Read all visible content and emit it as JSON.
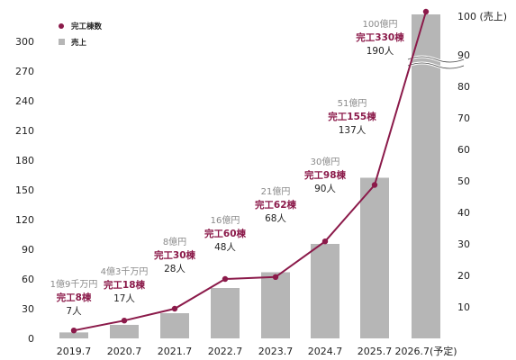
{
  "chart_data": {
    "type": "bar+line",
    "categories": [
      "2019.7",
      "2020.7",
      "2021.7",
      "2022.7",
      "2023.7",
      "2024.7",
      "2025.7",
      "2026.7(予定)"
    ],
    "legend": {
      "position": "top-left",
      "line_name": "完工棟数",
      "bar_name": "売上"
    },
    "colors": {
      "line": "#8b1a4a",
      "bar": "#b6b6b6",
      "units_label": "#8b1a4a",
      "revenue_label": "#8a8a8a"
    },
    "left_axis": {
      "ticks": [
        0,
        30,
        60,
        90,
        120,
        150,
        180,
        210,
        240,
        270,
        300
      ],
      "ylim": [
        0,
        310
      ]
    },
    "right_axis": {
      "ticks": [
        10,
        20,
        30,
        40,
        50,
        60,
        70,
        80,
        90
      ],
      "top_label": "100 (売上)",
      "ylim_lower": [
        0,
        90
      ],
      "axis_break": true
    },
    "series": [
      {
        "name": "完工棟数",
        "type": "line",
        "axis": "left",
        "values": [
          8,
          18,
          30,
          60,
          62,
          98,
          155,
          330
        ]
      },
      {
        "name": "売上",
        "type": "bar",
        "axis": "right",
        "unit": "億円",
        "values": [
          1.9,
          4.3,
          8,
          16,
          21,
          30,
          51,
          100
        ]
      }
    ],
    "annotations": [
      {
        "revenue": "1億9千万円",
        "units": "完工8棟",
        "people": "7人"
      },
      {
        "revenue": "4億3千万円",
        "units": "完工18棟",
        "people": "17人"
      },
      {
        "revenue": "8億円",
        "units": "完工30棟",
        "people": "28人"
      },
      {
        "revenue": "16億円",
        "units": "完工60棟",
        "people": "48人"
      },
      {
        "revenue": "21億円",
        "units": "完工62棟",
        "people": "68人"
      },
      {
        "revenue": "30億円",
        "units": "完工98棟",
        "people": "90人"
      },
      {
        "revenue": "51億円",
        "units": "完工155棟",
        "people": "137人"
      },
      {
        "revenue": "100億円",
        "units": "完工330棟",
        "people": "190人"
      }
    ]
  }
}
